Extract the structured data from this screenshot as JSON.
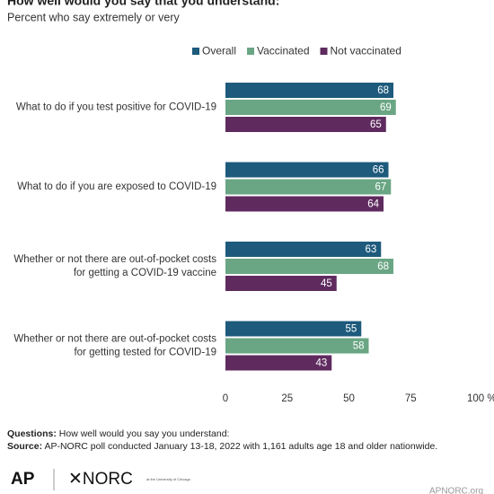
{
  "chart_data": {
    "type": "hbar",
    "title": "How well would you say that you understand:",
    "subtitle": "Percent who say extremely or very",
    "categories": [
      [
        "What to do if you test positive for COVID-19"
      ],
      [
        "What to do if you are exposed to COVID-19"
      ],
      [
        "Whether or not there are out-of-pocket costs",
        "for getting a COVID-19 vaccine"
      ],
      [
        "Whether or not there are out-of-pocket costs",
        "for getting tested for COVID-19"
      ]
    ],
    "series": [
      {
        "name": "Overall",
        "color": "#1d5a7c",
        "values": [
          68,
          66,
          63,
          55
        ]
      },
      {
        "name": "Vaccinated",
        "color": "#6aa684",
        "values": [
          69,
          67,
          68,
          58
        ]
      },
      {
        "name": "Not vaccinated",
        "color": "#5f2b5f",
        "values": [
          65,
          64,
          45,
          43
        ]
      }
    ],
    "xlim": [
      0,
      100
    ],
    "xticks": [
      0,
      25,
      50,
      75,
      {
        "value": 100,
        "label": "100 %"
      }
    ],
    "legend": "top"
  },
  "footer": {
    "questions_label": "Questions:",
    "questions": "How well would you say you understand:",
    "source_label": "Source:",
    "source": "AP-NORC poll conducted January 13-18, 2022 with 1,161 adults age 18 and older nationwide.",
    "logo_ap": "AP",
    "logo_norc": "✕NORC",
    "logo_norc_sub": "at the University of Chicago",
    "site": "APNORC.org"
  }
}
